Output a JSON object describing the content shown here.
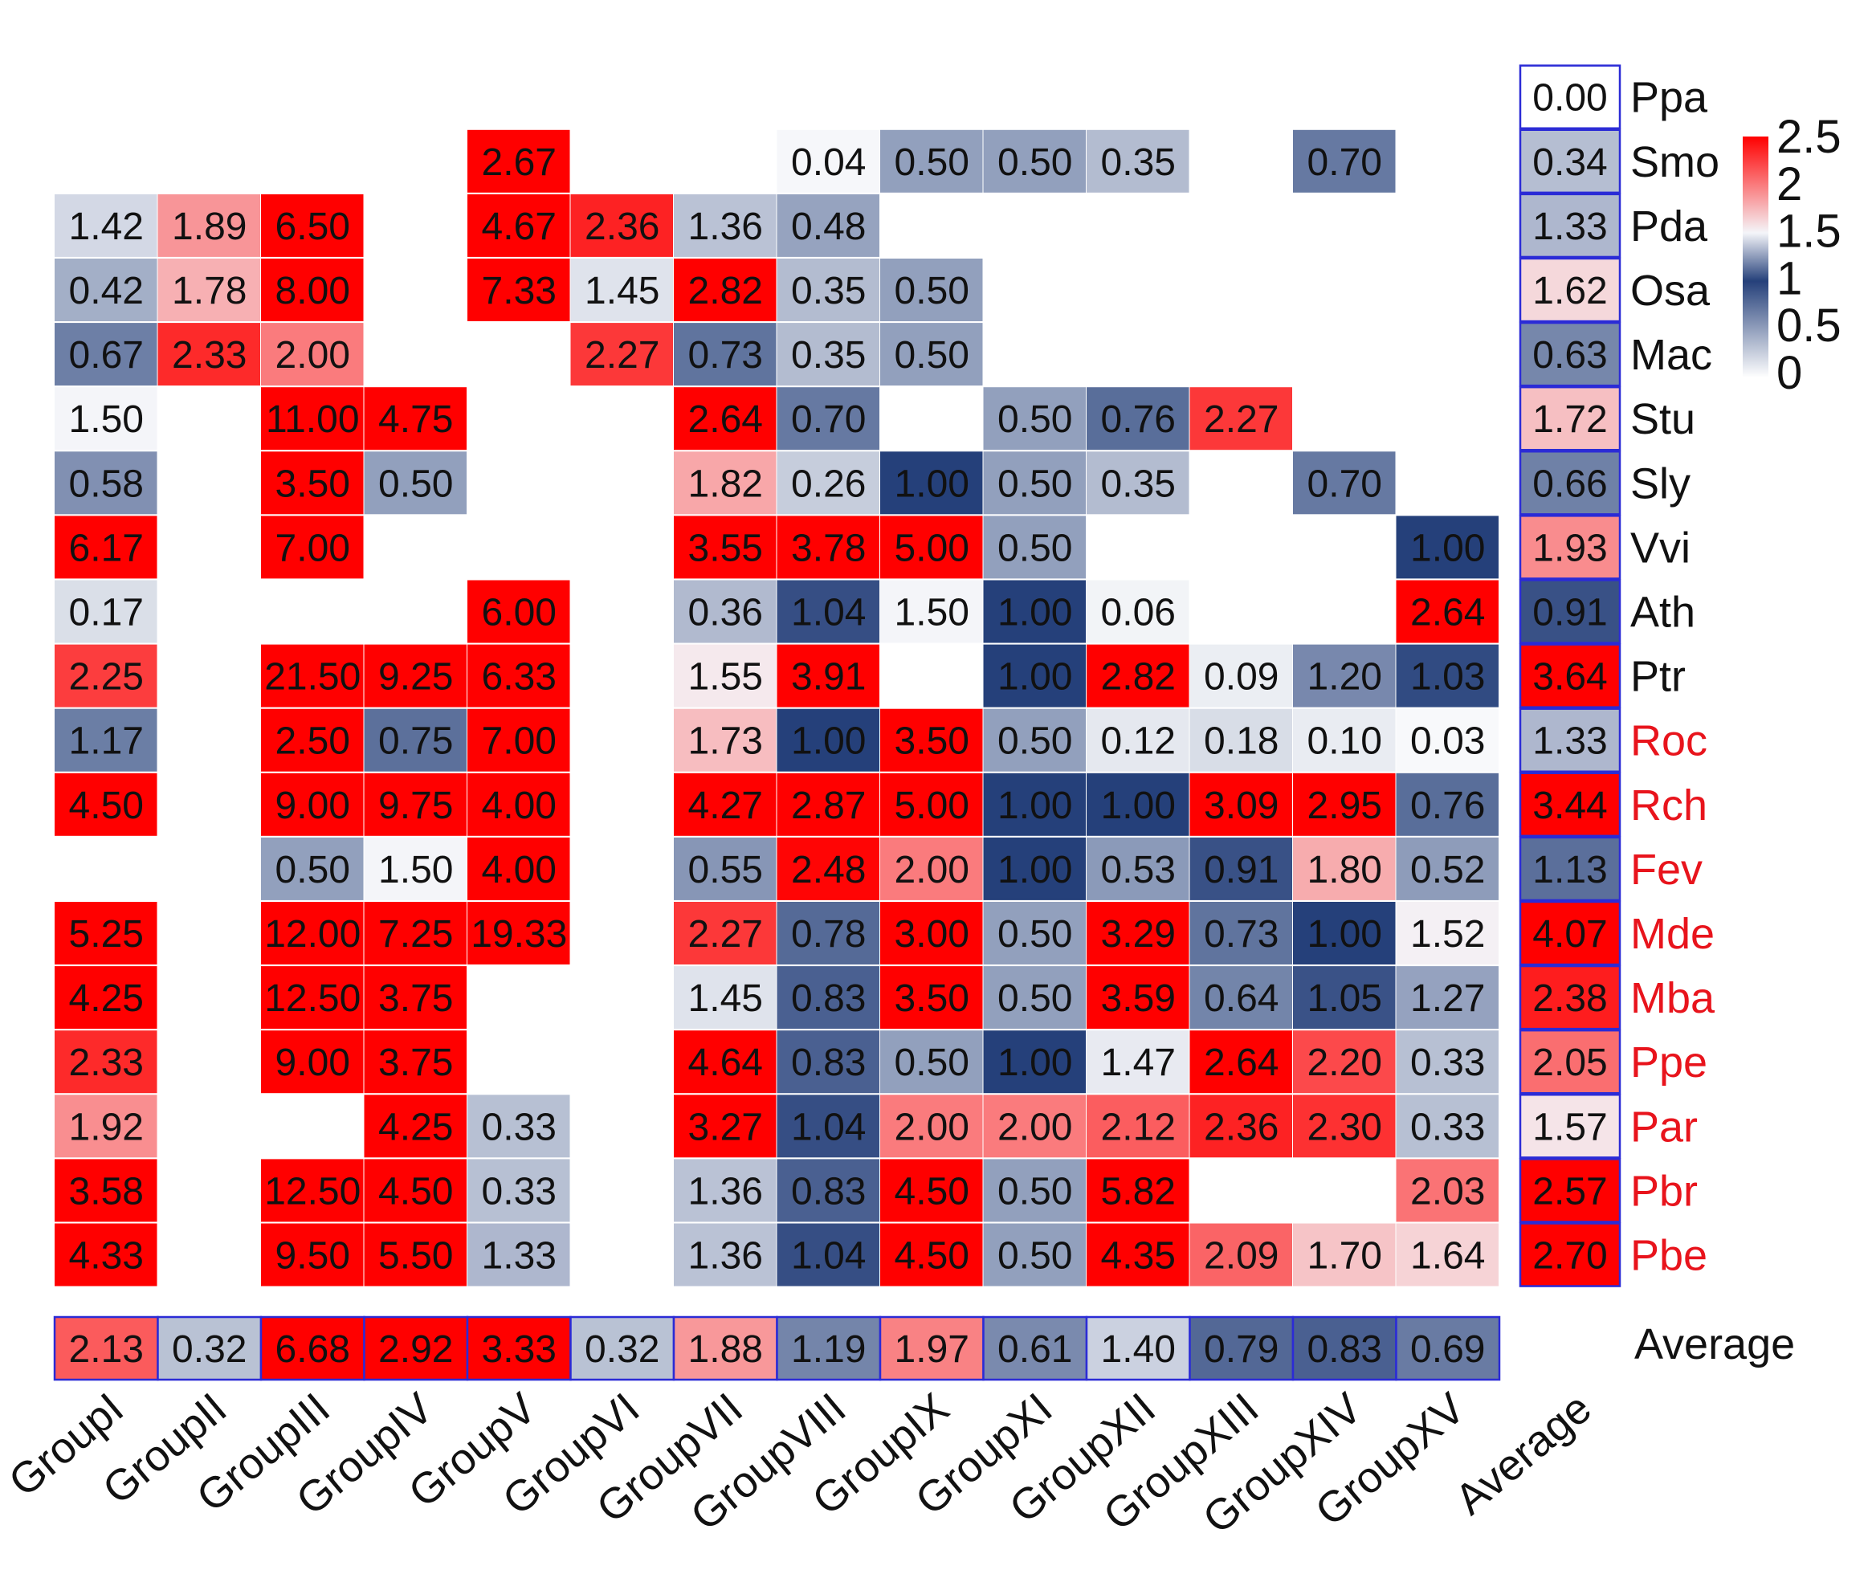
{
  "chart_data": {
    "type": "heatmap",
    "title": "",
    "columns": [
      "GroupI",
      "GroupII",
      "GroupIII",
      "GroupIV",
      "GroupV",
      "GroupVI",
      "GroupVII",
      "GroupVIII",
      "GroupIX",
      "GroupXI",
      "GroupXII",
      "GroupXIII",
      "GroupXIV",
      "GroupXV"
    ],
    "average_column_label": "Average",
    "average_row_label": "Average",
    "rows": [
      {
        "name": "Ppa",
        "color": "#111111",
        "values": [
          null,
          null,
          null,
          null,
          null,
          null,
          null,
          null,
          null,
          null,
          null,
          null,
          null,
          null
        ],
        "average": "0.00"
      },
      {
        "name": "Smo",
        "color": "#111111",
        "values": [
          null,
          null,
          null,
          null,
          "2.67",
          null,
          null,
          "0.04",
          "0.50",
          "0.50",
          "0.35",
          null,
          "0.70",
          null
        ],
        "average": "0.34"
      },
      {
        "name": "Pda",
        "color": "#111111",
        "values": [
          "1.42",
          "1.89",
          "6.50",
          null,
          "4.67",
          "2.36",
          "1.36",
          "0.48",
          null,
          null,
          null,
          null,
          null,
          null
        ],
        "average": "1.33"
      },
      {
        "name": "Osa",
        "color": "#111111",
        "values": [
          "0.42",
          "1.78",
          "8.00",
          null,
          "7.33",
          "1.45",
          "2.82",
          "0.35",
          "0.50",
          null,
          null,
          null,
          null,
          null
        ],
        "average": "1.62"
      },
      {
        "name": "Mac",
        "color": "#111111",
        "values": [
          "0.67",
          "2.33",
          "2.00",
          null,
          null,
          "2.27",
          "0.73",
          "0.35",
          "0.50",
          null,
          null,
          null,
          null,
          null
        ],
        "average": "0.63"
      },
      {
        "name": "Stu",
        "color": "#111111",
        "values": [
          "1.50",
          null,
          "11.00",
          "4.75",
          null,
          null,
          "2.64",
          "0.70",
          null,
          "0.50",
          "0.76",
          "2.27",
          null,
          null
        ],
        "average": "1.72"
      },
      {
        "name": "Sly",
        "color": "#111111",
        "values": [
          "0.58",
          null,
          "3.50",
          "0.50",
          null,
          null,
          "1.82",
          "0.26",
          "1.00",
          "0.50",
          "0.35",
          null,
          "0.70",
          null
        ],
        "average": "0.66"
      },
      {
        "name": "Vvi",
        "color": "#111111",
        "values": [
          "6.17",
          null,
          "7.00",
          null,
          null,
          null,
          "3.55",
          "3.78",
          "5.00",
          "0.50",
          null,
          null,
          null,
          "1.00"
        ],
        "average": "1.93"
      },
      {
        "name": "Ath",
        "color": "#111111",
        "values": [
          "0.17",
          null,
          null,
          null,
          "6.00",
          null,
          "0.36",
          "1.04",
          "1.50",
          "1.00",
          "0.06",
          null,
          null,
          "2.64"
        ],
        "average": "0.91"
      },
      {
        "name": "Ptr",
        "color": "#111111",
        "values": [
          "2.25",
          null,
          "21.50",
          "9.25",
          "6.33",
          null,
          "1.55",
          "3.91",
          null,
          "1.00",
          "2.82",
          "0.09",
          "1.20",
          "1.03"
        ],
        "average": "3.64"
      },
      {
        "name": "Roc",
        "color": "#e8141c",
        "values": [
          "1.17",
          null,
          "2.50",
          "0.75",
          "7.00",
          null,
          "1.73",
          "1.00",
          "3.50",
          "0.50",
          "0.12",
          "0.18",
          "0.10",
          "0.03"
        ],
        "average": "1.33"
      },
      {
        "name": "Rch",
        "color": "#e8141c",
        "values": [
          "4.50",
          null,
          "9.00",
          "9.75",
          "4.00",
          null,
          "4.27",
          "2.87",
          "5.00",
          "1.00",
          "1.00",
          "3.09",
          "2.95",
          "0.76"
        ],
        "average": "3.44"
      },
      {
        "name": "Fev",
        "color": "#e8141c",
        "values": [
          null,
          null,
          "0.50",
          "1.50",
          "4.00",
          null,
          "0.55",
          "2.48",
          "2.00",
          "1.00",
          "0.53",
          "0.91",
          "1.80",
          "0.52"
        ],
        "average": "1.13"
      },
      {
        "name": "Mde",
        "color": "#e8141c",
        "values": [
          "5.25",
          null,
          "12.00",
          "7.25",
          "19.33",
          null,
          "2.27",
          "0.78",
          "3.00",
          "0.50",
          "3.29",
          "0.73",
          "1.00",
          "1.52"
        ],
        "average": "4.07"
      },
      {
        "name": "Mba",
        "color": "#e8141c",
        "values": [
          "4.25",
          null,
          "12.50",
          "3.75",
          null,
          null,
          "1.45",
          "0.83",
          "3.50",
          "0.50",
          "3.59",
          "0.64",
          "1.05",
          "1.27"
        ],
        "average": "2.38"
      },
      {
        "name": "Ppe",
        "color": "#e8141c",
        "values": [
          "2.33",
          null,
          "9.00",
          "3.75",
          null,
          null,
          "4.64",
          "0.83",
          "0.50",
          "1.00",
          "1.47",
          "2.64",
          "2.20",
          "0.33"
        ],
        "average": "2.05"
      },
      {
        "name": "Par",
        "color": "#e8141c",
        "values": [
          "1.92",
          null,
          null,
          "4.25",
          "0.33",
          null,
          "3.27",
          "1.04",
          "2.00",
          "2.00",
          "2.12",
          "2.36",
          "2.30",
          "0.33"
        ],
        "average": "1.57"
      },
      {
        "name": "Pbr",
        "color": "#e8141c",
        "values": [
          "3.58",
          null,
          "12.50",
          "4.50",
          "0.33",
          null,
          "1.36",
          "0.83",
          "4.50",
          "0.50",
          "5.82",
          null,
          null,
          "2.03"
        ],
        "average": "2.57"
      },
      {
        "name": "Pbe",
        "color": "#e8141c",
        "values": [
          "4.33",
          null,
          "9.50",
          "5.50",
          "1.33",
          null,
          "1.36",
          "1.04",
          "4.50",
          "0.50",
          "4.35",
          "2.09",
          "1.70",
          "1.64"
        ],
        "average": "2.70"
      }
    ],
    "column_averages": [
      "2.13",
      "0.32",
      "6.68",
      "2.92",
      "3.33",
      "0.32",
      "1.88",
      "1.19",
      "1.97",
      "0.61",
      "1.40",
      "0.79",
      "0.83",
      "0.69"
    ],
    "color_scale": {
      "min": 0,
      "max": 2.5,
      "stops": [
        {
          "value": 0,
          "color": "#ffffff"
        },
        {
          "value": 1,
          "color": "#25407a"
        },
        {
          "value": 1.5,
          "color": "#f4f5f9"
        },
        {
          "value": 2.5,
          "color": "#ff0000"
        }
      ],
      "ticks": [
        "2.5",
        "2",
        "1.5",
        "1",
        "0.5",
        "0"
      ],
      "notes": "cell colour approximates the printed value; values above 2.5 are saturated red"
    },
    "highlight_border_color": "#2b2bd6"
  }
}
